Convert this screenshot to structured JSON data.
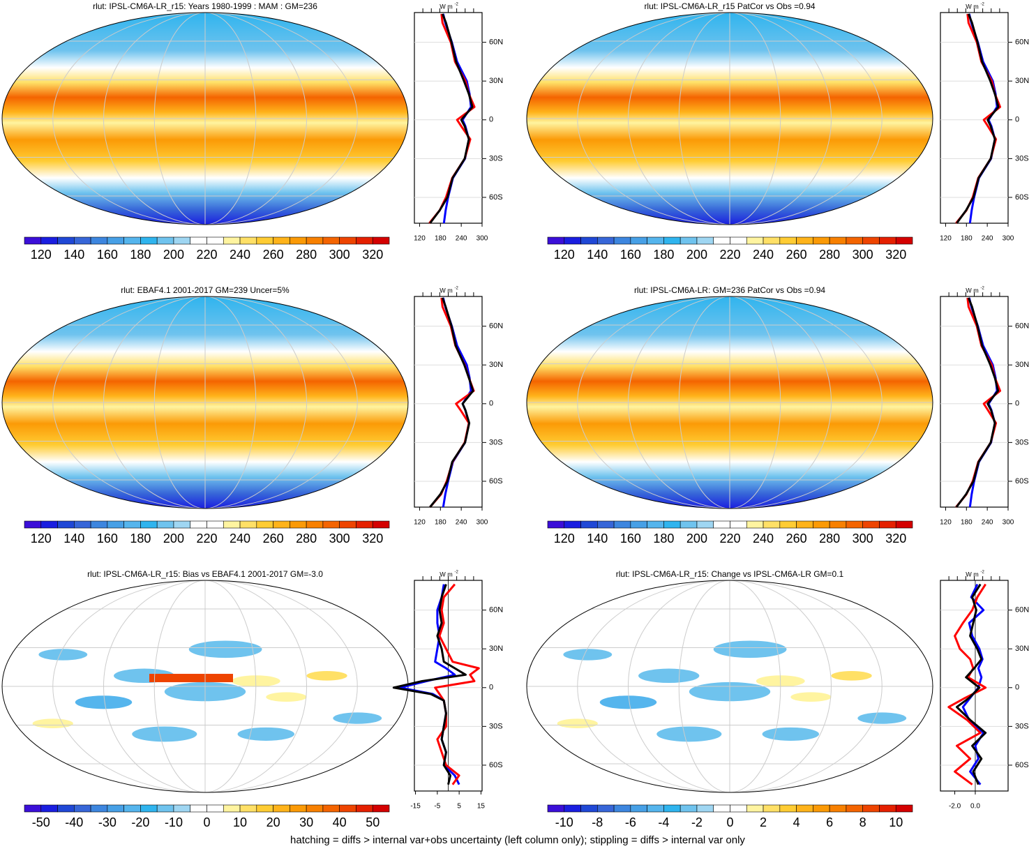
{
  "chart_data": [
    {
      "type": "line",
      "title": "rlut: IPSL-CM6A-LR_r15: Years 1980-1999 : MAM : GM=236",
      "colorbar": {
        "lim": [
          110,
          330
        ],
        "ticks": [
          120,
          140,
          160,
          180,
          200,
          220,
          240,
          260,
          280,
          300,
          320
        ],
        "colors": [
          "#3b0fd8",
          "#1a1ee0",
          "#2048d6",
          "#3766d8",
          "#3d86df",
          "#47a0e6",
          "#55b5ed",
          "#2fb4ee",
          "#6fc3ee",
          "#9fd6f2",
          "#ffffff",
          "#ffffff",
          "#fff4a0",
          "#ffe066",
          "#ffcc33",
          "#ffb31a",
          "#fb9a06",
          "#f88000",
          "#f46400",
          "#ee4400",
          "#e52000",
          "#d40000"
        ]
      },
      "profile": {
        "unit": "W m",
        "unit_exp": "-2",
        "xlim": [
          105,
          300
        ],
        "xticks": [
          120,
          180,
          240,
          300
        ],
        "ylim": [
          -80,
          83
        ],
        "yticks": [
          {
            "value": 60,
            "label": "60N"
          },
          {
            "value": 30,
            "label": "30N"
          },
          0,
          {
            "value": -30,
            "label": "30S"
          },
          {
            "value": -60,
            "label": "60S"
          }
        ],
        "lat": [
          -80,
          -70,
          -60,
          -45,
          -30,
          -15,
          -5,
          0,
          10,
          20,
          30,
          45,
          60,
          75,
          82
        ],
        "series": [
          {
            "color": "#0000ff",
            "values": [
              190,
              195,
              202,
              216,
              251,
              262,
              252,
              244,
              268,
              264,
              256,
              228,
              213,
              194,
              188
            ]
          },
          {
            "color": "#ff0000",
            "values": [
              148,
              178,
              196,
              214,
              250,
              266,
              240,
              228,
              278,
              262,
              252,
              222,
              210,
              186,
              183
            ]
          },
          {
            "color": "#000000",
            "values": [
              150,
              178,
              200,
              215,
              250,
              262,
              250,
              240,
              272,
              262,
              248,
              225,
              212,
              196,
              186
            ]
          }
        ]
      }
    },
    {
      "type": "line",
      "title": "rlut: IPSL-CM6A-LR_r15 PatCor vs Obs =0.94",
      "colorbar": {
        "lim": [
          110,
          330
        ],
        "ticks": [
          120,
          140,
          160,
          180,
          200,
          220,
          240,
          260,
          280,
          300,
          320
        ],
        "colors": [
          "#3b0fd8",
          "#1a1ee0",
          "#2048d6",
          "#3766d8",
          "#3d86df",
          "#47a0e6",
          "#55b5ed",
          "#2fb4ee",
          "#6fc3ee",
          "#9fd6f2",
          "#ffffff",
          "#ffffff",
          "#fff4a0",
          "#ffe066",
          "#ffcc33",
          "#ffb31a",
          "#fb9a06",
          "#f88000",
          "#f46400",
          "#ee4400",
          "#e52000",
          "#d40000"
        ]
      },
      "profile": {
        "unit": "W m",
        "unit_exp": "-2",
        "xlim": [
          105,
          300
        ],
        "xticks": [
          120,
          180,
          240,
          300
        ],
        "ylim": [
          -80,
          83
        ],
        "yticks": [
          {
            "value": 60,
            "label": "60N"
          },
          {
            "value": 30,
            "label": "30N"
          },
          0,
          {
            "value": -30,
            "label": "30S"
          },
          {
            "value": -60,
            "label": "60S"
          }
        ],
        "lat": [
          -80,
          -70,
          -60,
          -45,
          -30,
          -15,
          -5,
          0,
          10,
          20,
          30,
          45,
          60,
          75,
          82
        ],
        "series": [
          {
            "color": "#0000ff",
            "values": [
              190,
              195,
              202,
              216,
              251,
              262,
              252,
              244,
              268,
              264,
              256,
              228,
              213,
              194,
              188
            ]
          },
          {
            "color": "#ff0000",
            "values": [
              150,
              180,
              198,
              214,
              250,
              265,
              242,
              230,
              277,
              262,
              253,
              223,
              210,
              186,
              183
            ]
          },
          {
            "color": "#000000",
            "values": [
              152,
              179,
              200,
              215,
              250,
              262,
              250,
              241,
              272,
              262,
              249,
              225,
              212,
              196,
              186
            ]
          }
        ]
      }
    },
    {
      "type": "line",
      "title": "rlut: EBAF4.1 2001-2017 GM=239 Uncer=5%",
      "colorbar": {
        "lim": [
          110,
          330
        ],
        "ticks": [
          120,
          140,
          160,
          180,
          200,
          220,
          240,
          260,
          280,
          300,
          320
        ],
        "colors": [
          "#3b0fd8",
          "#1a1ee0",
          "#2048d6",
          "#3766d8",
          "#3d86df",
          "#47a0e6",
          "#55b5ed",
          "#2fb4ee",
          "#6fc3ee",
          "#9fd6f2",
          "#ffffff",
          "#ffffff",
          "#fff4a0",
          "#ffe066",
          "#ffcc33",
          "#ffb31a",
          "#fb9a06",
          "#f88000",
          "#f46400",
          "#ee4400",
          "#e52000",
          "#d40000"
        ]
      },
      "profile": {
        "unit": "W m",
        "unit_exp": "-2",
        "xlim": [
          105,
          300
        ],
        "xticks": [
          120,
          180,
          240,
          300
        ],
        "ylim": [
          -80,
          83
        ],
        "yticks": [
          {
            "value": 60,
            "label": "60N"
          },
          {
            "value": 30,
            "label": "30N"
          },
          0,
          {
            "value": -30,
            "label": "30S"
          },
          {
            "value": -60,
            "label": "60S"
          }
        ],
        "lat": [
          -80,
          -70,
          -60,
          -45,
          -30,
          -15,
          -5,
          0,
          10,
          20,
          30,
          45,
          60,
          75,
          82
        ],
        "series": [
          {
            "color": "#0000ff",
            "values": [
              188,
              194,
              202,
              216,
              251,
              262,
              252,
              244,
              268,
              264,
              256,
              228,
              213,
              194,
              188
            ]
          },
          {
            "color": "#ff0000",
            "values": [
              150,
              182,
              198,
              215,
              250,
              262,
              238,
              225,
              276,
              262,
              250,
              223,
              210,
              186,
              183
            ]
          },
          {
            "color": "#000000",
            "values": [
              150,
              180,
              200,
              214,
              251,
              263,
              252,
              244,
              274,
              262,
              249,
              224,
              212,
              195,
              186
            ]
          }
        ]
      }
    },
    {
      "type": "line",
      "title": "rlut: IPSL-CM6A-LR: GM=236 PatCor vs Obs =0.94",
      "colorbar": {
        "lim": [
          110,
          330
        ],
        "ticks": [
          120,
          140,
          160,
          180,
          200,
          220,
          240,
          260,
          280,
          300,
          320
        ],
        "colors": [
          "#3b0fd8",
          "#1a1ee0",
          "#2048d6",
          "#3766d8",
          "#3d86df",
          "#47a0e6",
          "#55b5ed",
          "#2fb4ee",
          "#6fc3ee",
          "#9fd6f2",
          "#ffffff",
          "#ffffff",
          "#fff4a0",
          "#ffe066",
          "#ffcc33",
          "#ffb31a",
          "#fb9a06",
          "#f88000",
          "#f46400",
          "#ee4400",
          "#e52000",
          "#d40000"
        ]
      },
      "profile": {
        "unit": "W m",
        "unit_exp": "-2",
        "xlim": [
          105,
          300
        ],
        "xticks": [
          120,
          180,
          240,
          300
        ],
        "ylim": [
          -80,
          83
        ],
        "yticks": [
          {
            "value": 60,
            "label": "60N"
          },
          {
            "value": 30,
            "label": "30N"
          },
          0,
          {
            "value": -30,
            "label": "30S"
          },
          {
            "value": -60,
            "label": "60S"
          }
        ],
        "lat": [
          -80,
          -70,
          -60,
          -45,
          -30,
          -15,
          -5,
          0,
          10,
          20,
          30,
          45,
          60,
          75,
          82
        ],
        "series": [
          {
            "color": "#0000ff",
            "values": [
              190,
              195,
              202,
              216,
              251,
              262,
              252,
              244,
              268,
              264,
              256,
              228,
              213,
              194,
              188
            ]
          },
          {
            "color": "#ff0000",
            "values": [
              150,
              180,
              198,
              214,
              250,
              265,
              242,
              230,
              277,
              262,
              253,
              223,
              210,
              186,
              183
            ]
          },
          {
            "color": "#000000",
            "values": [
              151,
              179,
              200,
              215,
              250,
              262,
              251,
              241,
              271,
              262,
              249,
              225,
              212,
              196,
              186
            ]
          }
        ]
      }
    },
    {
      "type": "line",
      "title": "rlut: IPSL-CM6A-LR_r15: Bias vs EBAF4.1 2001-2017 GM=-3.0",
      "colorbar": {
        "lim": [
          -55,
          55
        ],
        "ticks": [
          -50,
          -40,
          -30,
          -20,
          -10,
          0,
          10,
          20,
          30,
          40,
          50
        ],
        "colors": [
          "#3b0fd8",
          "#1a1ee0",
          "#2048d6",
          "#3766d8",
          "#3d86df",
          "#47a0e6",
          "#55b5ed",
          "#2fb4ee",
          "#6fc3ee",
          "#9fd6f2",
          "#ffffff",
          "#ffffff",
          "#fff4a0",
          "#ffe066",
          "#ffcc33",
          "#ffb31a",
          "#fb9a06",
          "#f88000",
          "#f46400",
          "#ee4400",
          "#e52000",
          "#d40000"
        ]
      },
      "profile": {
        "unit": "W m",
        "unit_exp": "-2",
        "xlim": [
          -15.5,
          15.5
        ],
        "xticks": [
          -15,
          -5,
          5,
          15
        ],
        "ylim": [
          -80,
          83
        ],
        "yticks": [
          {
            "value": 60,
            "label": "60N"
          },
          {
            "value": 30,
            "label": "30N"
          },
          0,
          {
            "value": -30,
            "label": "30S"
          },
          {
            "value": -60,
            "label": "60S"
          }
        ],
        "lat": [
          -75,
          -68,
          -60,
          -50,
          -40,
          -30,
          -20,
          -10,
          -5,
          0,
          5,
          10,
          15,
          20,
          30,
          40,
          50,
          60,
          70,
          80
        ],
        "series": [
          {
            "color": "#0000ff",
            "values": [
              5,
              3,
              -2,
              -1,
              -3,
              -2,
              -1,
              -2,
              -7,
              -22,
              -10,
              3,
              -1,
              -6,
              -5,
              -4,
              -5,
              -5,
              -3,
              -2
            ]
          },
          {
            "color": "#ff0000",
            "values": [
              2,
              5,
              -1,
              -3,
              -5,
              -1,
              -1,
              -2,
              -4,
              -6,
              12,
              10,
              14,
              2,
              -1,
              -4,
              -2,
              -3,
              -2,
              3
            ]
          },
          {
            "color": "#000000",
            "values": [
              0,
              1,
              -2,
              -1,
              -3,
              -2,
              -1,
              -2,
              -8,
              -25,
              -12,
              8,
              3,
              -2,
              -3,
              -5,
              -3,
              -4,
              -3,
              -1
            ]
          }
        ]
      }
    },
    {
      "type": "line",
      "title": "rlut: IPSL-CM6A-LR_r15: Change vs IPSL-CM6A-LR GM=0.1",
      "colorbar": {
        "lim": [
          -11,
          11
        ],
        "ticks": [
          -10,
          -8,
          -6,
          -4,
          -2,
          0,
          2,
          4,
          6,
          8,
          10
        ],
        "colors": [
          "#3b0fd8",
          "#1a1ee0",
          "#2048d6",
          "#3766d8",
          "#3d86df",
          "#47a0e6",
          "#55b5ed",
          "#2fb4ee",
          "#6fc3ee",
          "#9fd6f2",
          "#ffffff",
          "#ffffff",
          "#fff4a0",
          "#ffe066",
          "#ffcc33",
          "#ffb31a",
          "#fb9a06",
          "#f88000",
          "#f46400",
          "#ee4400",
          "#e52000",
          "#d40000"
        ]
      },
      "profile": {
        "unit": "W m",
        "unit_exp": "-2",
        "xlim": [
          -3.4,
          3.2
        ],
        "xticks": [
          {
            "value": -2,
            "label": "-2.0"
          },
          {
            "value": 0,
            "label": "0.0"
          }
        ],
        "ylim": [
          -80,
          83
        ],
        "yticks": [
          {
            "value": 60,
            "label": "60N"
          },
          {
            "value": 30,
            "label": "30N"
          },
          0,
          {
            "value": -30,
            "label": "30S"
          },
          {
            "value": -60,
            "label": "60S"
          }
        ],
        "lat": [
          -75,
          -65,
          -55,
          -45,
          -35,
          -25,
          -15,
          -8,
          0,
          8,
          15,
          22,
          30,
          40,
          50,
          60,
          70,
          80
        ],
        "series": [
          {
            "color": "#0000ff",
            "values": [
              0.5,
              -0.5,
              0.3,
              0,
              0.8,
              -0.6,
              -1.2,
              -0.5,
              0.3,
              0.6,
              0.3,
              0.7,
              0.4,
              -0.3,
              -0.6,
              0.8,
              -0.4,
              0.2
            ]
          },
          {
            "color": "#ff0000",
            "values": [
              -0.3,
              -2.0,
              -0.5,
              -1.8,
              0.5,
              -0.8,
              -2.6,
              -1.0,
              1.0,
              -0.7,
              -0.2,
              -0.5,
              -1.5,
              -2.0,
              -1.2,
              -0.3,
              0.2,
              1.0
            ]
          },
          {
            "color": "#000000",
            "values": [
              0.3,
              -0.2,
              0.6,
              -0.3,
              1.0,
              -0.5,
              -1.8,
              -0.6,
              0.4,
              -0.9,
              -0.1,
              0.6,
              0.2,
              -0.5,
              -0.2,
              0.1,
              -0.3,
              0.5
            ]
          }
        ]
      }
    }
  ],
  "footer": "hatching = diffs > internal var+obs uncertainty (left column only); stippling = diffs > internal var only"
}
